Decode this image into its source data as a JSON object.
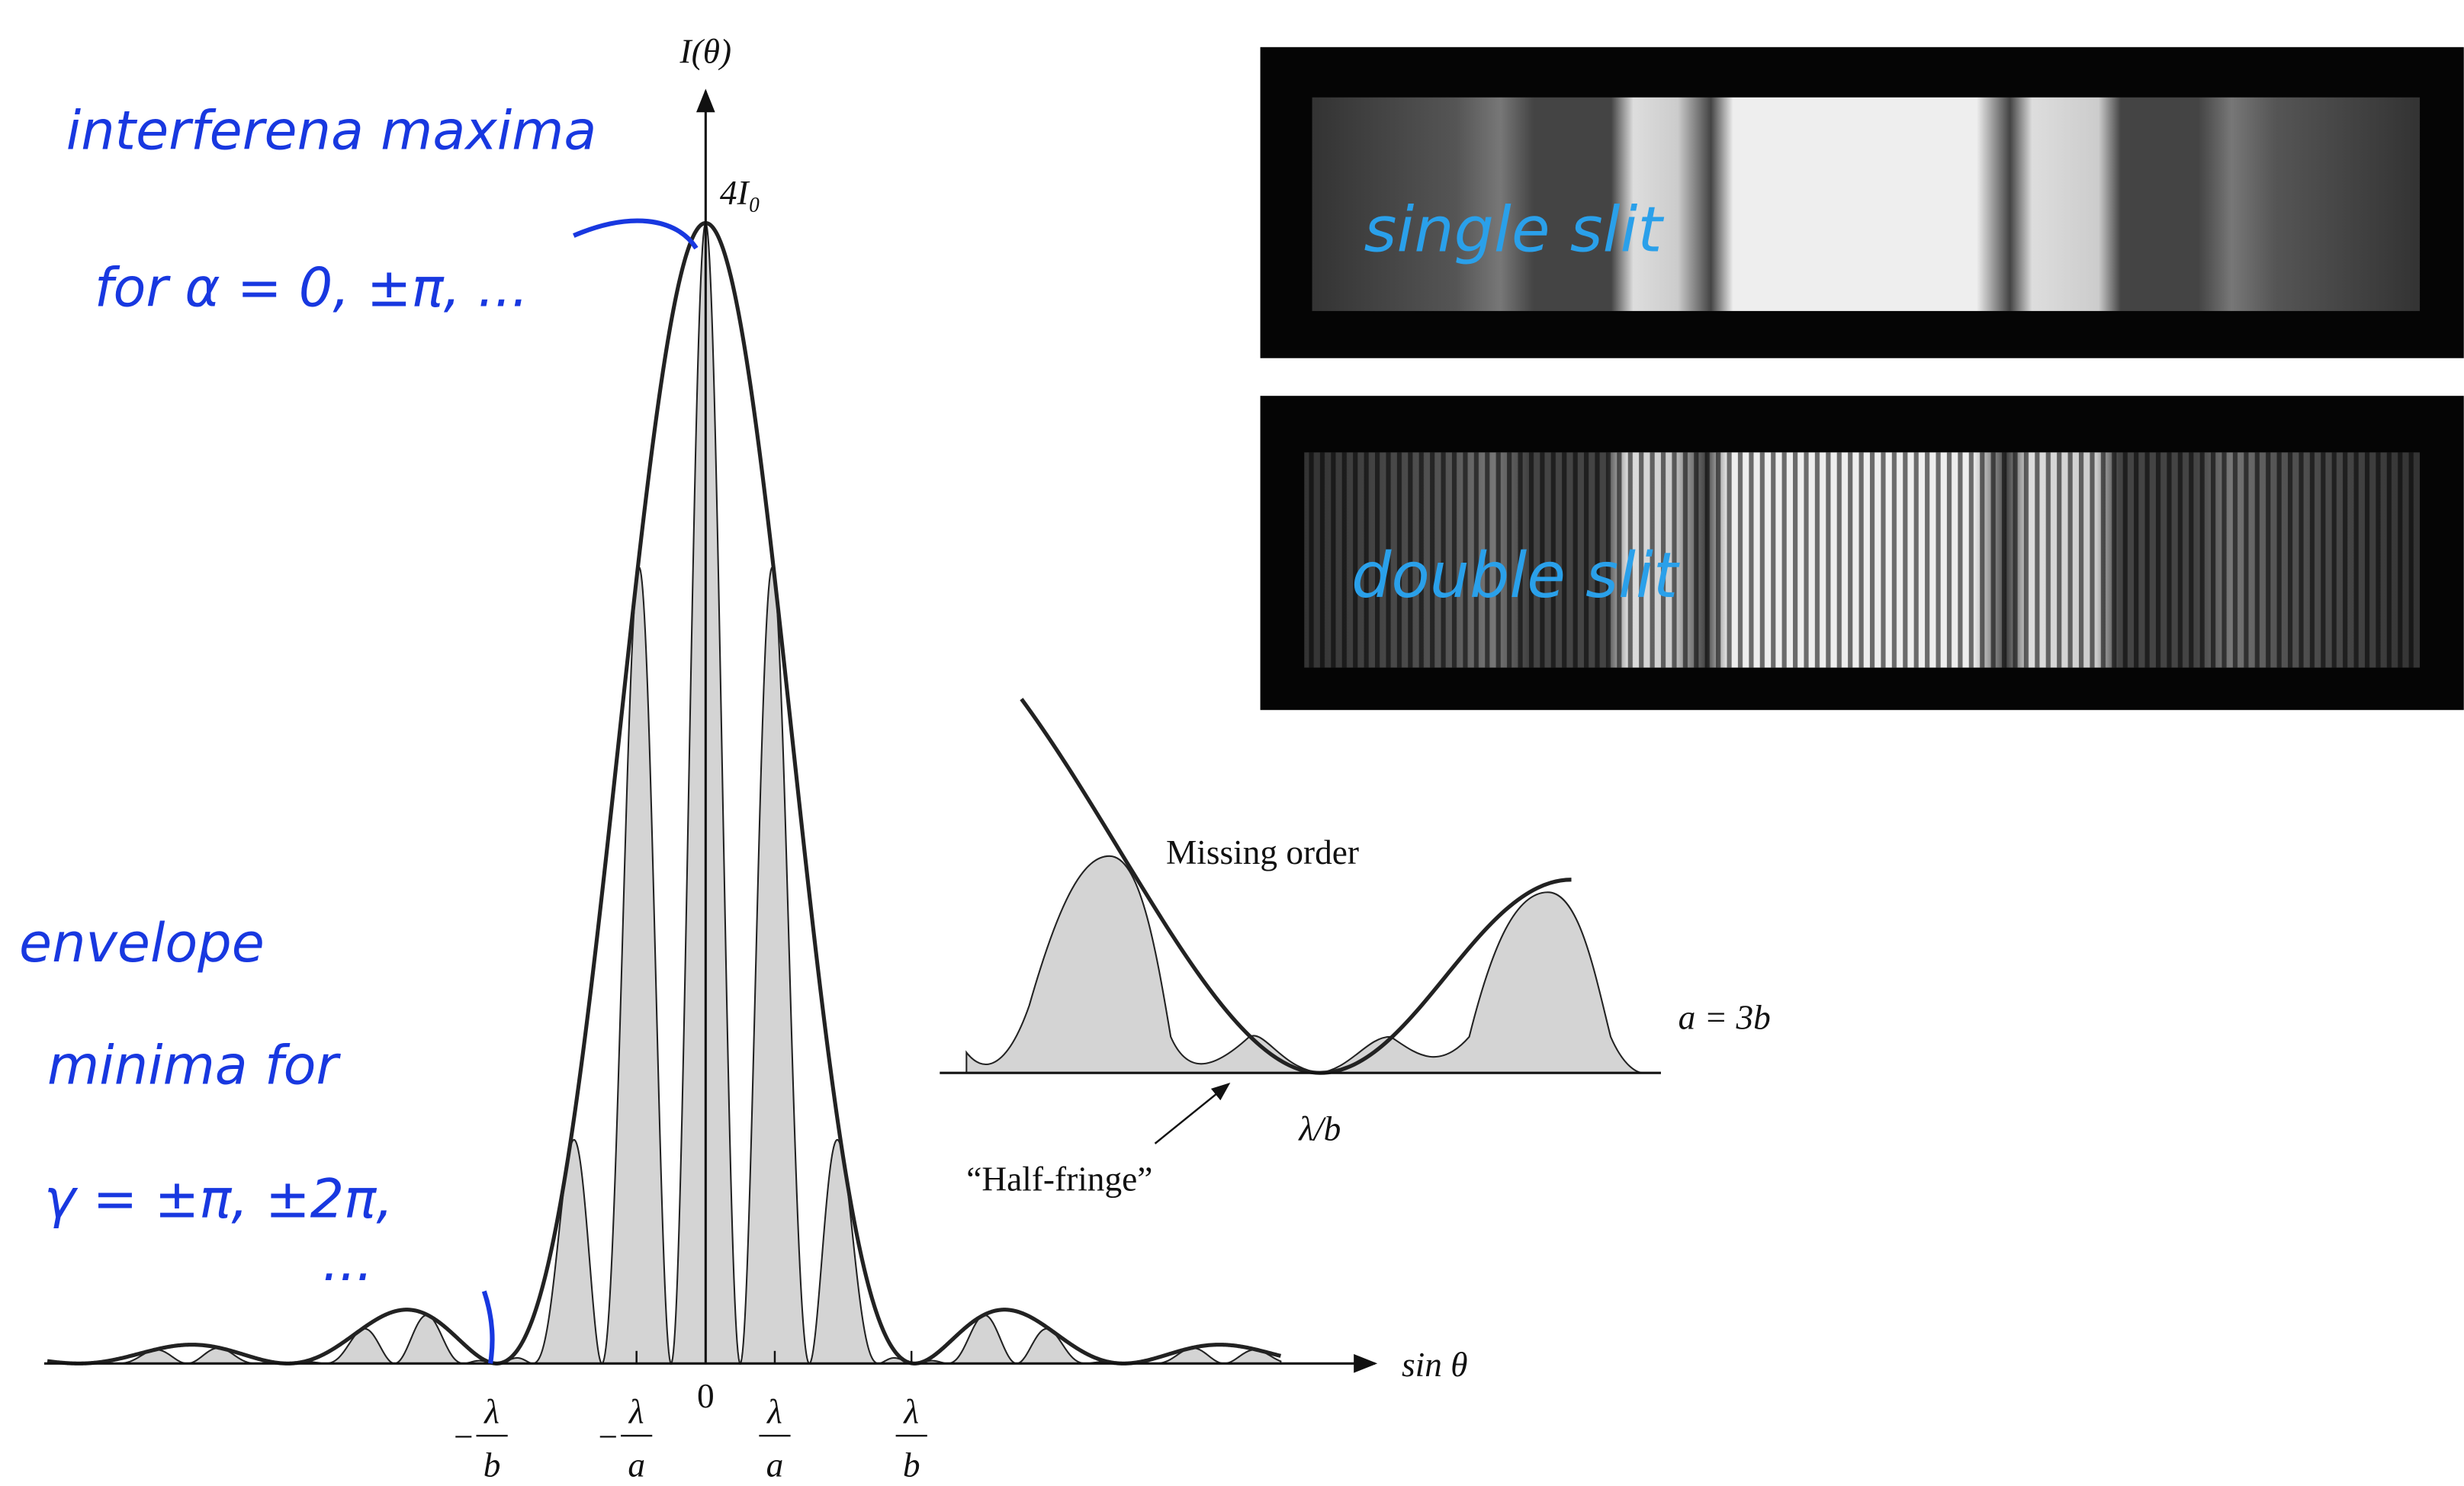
{
  "plot": {
    "y_label": "I(θ)",
    "peak_label": "4I₀",
    "x_label": "sin θ",
    "origin_label": "0",
    "ticks": [
      {
        "sign": "−",
        "numerator": "λ",
        "denominator": "b"
      },
      {
        "sign": "−",
        "numerator": "λ",
        "denominator": "a"
      },
      {
        "numerator": "λ",
        "denominator": "a"
      },
      {
        "numerator": "λ",
        "denominator": "b"
      }
    ]
  },
  "inset": {
    "missing_order": "Missing order",
    "relation": "a = 3b",
    "position_label": "λ/b",
    "half_fringe": "“Half-fringe”"
  },
  "photos": {
    "single": "single slit",
    "double": "double slit"
  },
  "notes": {
    "maxima_line1": "interferena maxima",
    "maxima_line2": "for α = 0, ±π, ...",
    "minima_line1": "envelope",
    "minima_line2": "minima for",
    "minima_line3": "γ = ±π, ±2π,",
    "minima_line4": "..."
  }
}
